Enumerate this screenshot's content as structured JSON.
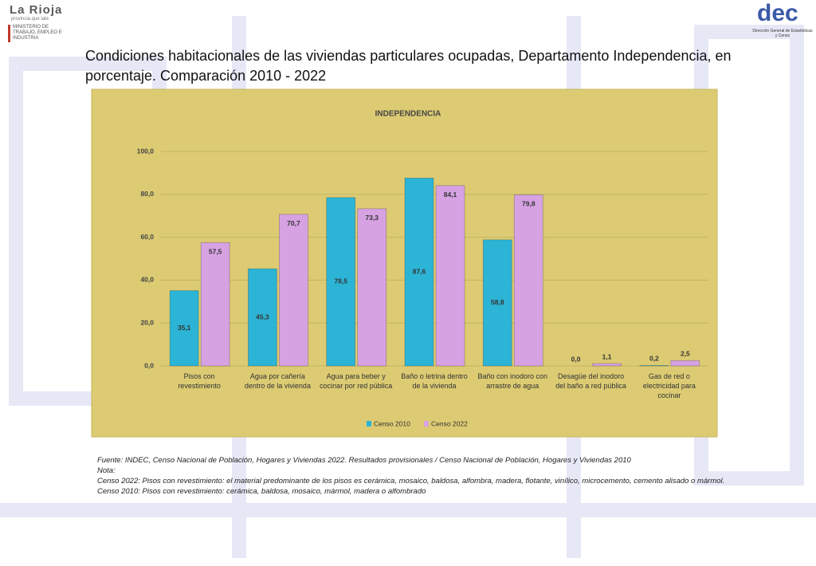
{
  "header": {
    "brand": "La Rioja",
    "tagline": "provincia que late",
    "ministry": "MINISTERIO DE TRABAJO, EMPLEO E INDUSTRIA",
    "dec_logo": "dec",
    "dec_name": "Dirección General de Estadísticas y Censo"
  },
  "slide_title": "Condiciones habitacionales de las viviendas particulares ocupadas, Departamento Independencia, en porcentaje. Comparación 2010 - 2022",
  "chart_data": {
    "type": "bar",
    "title": "INDEPENDENCIA",
    "categories": [
      "Pisos con revestimiento",
      "Agua por cañería dentro de la vivienda",
      "Agua para beber y cocinar por red pública",
      "Baño o letrina dentro de la vivienda",
      "Baño con inodoro con arrastre de agua",
      "Desagüe del inodoro del baño a red pública",
      "Gas de red o electricidad para cocinar"
    ],
    "series": [
      {
        "name": "Censo 2010",
        "color": "#2cb4d6",
        "values": [
          35.1,
          45.3,
          78.5,
          87.6,
          58.8,
          0.0,
          0.2
        ],
        "value_labels": [
          "35,1",
          "45,3",
          "78,5",
          "87,6",
          "58,8",
          "0,0",
          "0,2"
        ]
      },
      {
        "name": "Censo 2022",
        "color": "#d6a2e2",
        "values": [
          57.5,
          70.7,
          73.3,
          84.1,
          79.8,
          1.1,
          2.5
        ],
        "value_labels": [
          "57,5",
          "70,7",
          "73,3",
          "84,1",
          "79,8",
          "1,1",
          "2,5"
        ]
      }
    ],
    "ylim": [
      0,
      100
    ],
    "yticks": [
      {
        "value": 0,
        "label": "0,0"
      },
      {
        "value": 20,
        "label": "20,0"
      },
      {
        "value": 40,
        "label": "40,0"
      },
      {
        "value": 60,
        "label": "60,0"
      },
      {
        "value": 80,
        "label": "80,0"
      },
      {
        "value": 100,
        "label": "100,0"
      }
    ],
    "grid": true,
    "legend": "bottom"
  },
  "notes": [
    "Fuente: INDEC, Censo Nacional de Población, Hogares y Viviendas 2022. Resultados provisionales / Censo Nacional de Población, Hogares y Viviendas 2010",
    "Nota:",
    "Censo 2022: Pisos con revestimiento: el material predominante de los pisos es cerámica, mosaico, baldosa, alfombra, madera, flotante, vinílico, microcemento, cemento alisado o mármol.",
    "Censo 2010: Pisos con revestimiento: cerámica, baldosa, mosaico, mármol, madera o alfombrado"
  ]
}
